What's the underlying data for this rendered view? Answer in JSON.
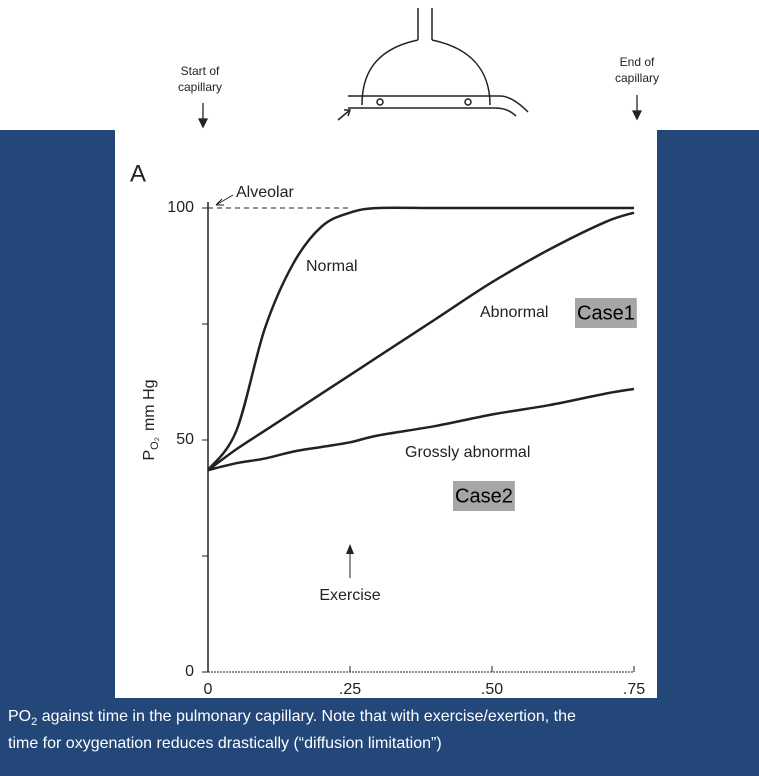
{
  "diagram": {
    "start_label": [
      "Start of",
      "capillary"
    ],
    "end_label": [
      "End of",
      "capillary"
    ]
  },
  "chart_data": {
    "type": "line",
    "panel_label": "A",
    "ylabel": {
      "symbol": "P",
      "subscript": "O₂",
      "unit": "mm Hg"
    },
    "x": [
      0,
      0.05,
      0.1,
      0.15,
      0.2,
      0.25,
      0.3,
      0.4,
      0.5,
      0.6,
      0.7,
      0.75
    ],
    "series": [
      {
        "name": "Normal",
        "color": "#222222",
        "values": [
          43.5,
          52,
          74,
          88,
          96,
          99,
          100,
          100,
          100,
          100,
          100,
          100
        ]
      },
      {
        "name": "Abnormal",
        "color": "#222222",
        "values": [
          43.5,
          48,
          52,
          56,
          60,
          64,
          68,
          76,
          84,
          91,
          97,
          99
        ]
      },
      {
        "name": "Grossly abnormal",
        "color": "#222222",
        "values": [
          43.5,
          45,
          46,
          47.5,
          48.5,
          49.5,
          51,
          53,
          55.5,
          57.5,
          60,
          61
        ]
      }
    ],
    "reference": {
      "label": "Alveolar",
      "value": 100
    },
    "annotations": [
      {
        "text": "Exercise",
        "x": 0.25
      },
      {
        "text": "Case1"
      },
      {
        "text": "Case2"
      }
    ],
    "xlim": [
      0,
      0.75
    ],
    "ylim": [
      0,
      100
    ],
    "xticks": [
      0,
      {
        "value": 0.25,
        "label": ".25"
      },
      {
        "value": 0.5,
        "label": ".50"
      },
      {
        "value": 0.75,
        "label": ".75"
      }
    ],
    "yticks": [
      0,
      50,
      100
    ],
    "yminorticks": [
      25,
      75
    ]
  },
  "caption": {
    "lines": [
      {
        "prefix": "PO",
        "sub": "2",
        "text": " against time in the pulmonary capillary. Note that with exercise/exertion, the"
      },
      {
        "text": "time for oxygenation reduces drastically (“diffusion limitation”)"
      }
    ]
  }
}
